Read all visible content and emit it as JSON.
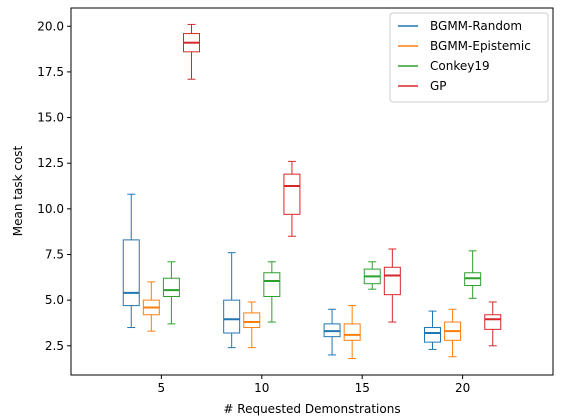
{
  "chart_data": {
    "type": "box",
    "title": "",
    "xlabel": "# Requested Demonstrations",
    "ylabel": "Mean task cost",
    "categories": [
      "5",
      "10",
      "15",
      "20"
    ],
    "x_ticks": [
      5,
      10,
      15,
      20
    ],
    "xlim": [
      0.5,
      24.5
    ],
    "ylim": [
      0.9,
      21.0
    ],
    "y_ticks": [
      "2.5",
      "5.0",
      "7.5",
      "10.0",
      "12.5",
      "15.0",
      "17.5",
      "20.0"
    ],
    "grid": false,
    "legend_position": "upper right",
    "series": [
      {
        "name": "BGMM-Random",
        "color": "#1f77b4",
        "boxes": [
          {
            "whislo": 3.5,
            "q1": 4.7,
            "med": 5.4,
            "q3": 8.3,
            "whishi": 10.8
          },
          {
            "whislo": 2.4,
            "q1": 3.2,
            "med": 3.95,
            "q3": 5.0,
            "whishi": 7.6
          },
          {
            "whislo": 2.0,
            "q1": 3.0,
            "med": 3.3,
            "q3": 3.7,
            "whishi": 4.5
          },
          {
            "whislo": 2.3,
            "q1": 2.7,
            "med": 3.2,
            "q3": 3.5,
            "whishi": 4.4
          }
        ]
      },
      {
        "name": "BGMM-Epistemic",
        "color": "#ff7f0e",
        "boxes": [
          {
            "whislo": 3.3,
            "q1": 4.2,
            "med": 4.6,
            "q3": 5.0,
            "whishi": 6.0
          },
          {
            "whislo": 2.4,
            "q1": 3.5,
            "med": 3.8,
            "q3": 4.3,
            "whishi": 4.9
          },
          {
            "whislo": 1.8,
            "q1": 2.8,
            "med": 3.1,
            "q3": 3.7,
            "whishi": 4.7
          },
          {
            "whislo": 1.9,
            "q1": 2.8,
            "med": 3.3,
            "q3": 3.8,
            "whishi": 4.5
          }
        ]
      },
      {
        "name": "Conkey19",
        "color": "#2ca02c",
        "boxes": [
          {
            "whislo": 3.7,
            "q1": 5.2,
            "med": 5.55,
            "q3": 6.2,
            "whishi": 7.1
          },
          {
            "whislo": 3.8,
            "q1": 5.2,
            "med": 6.05,
            "q3": 6.5,
            "whishi": 7.1
          },
          {
            "whislo": 5.6,
            "q1": 5.9,
            "med": 6.3,
            "q3": 6.7,
            "whishi": 7.1
          },
          {
            "whislo": 5.1,
            "q1": 5.8,
            "med": 6.2,
            "q3": 6.5,
            "whishi": 7.7
          }
        ]
      },
      {
        "name": "GP",
        "color": "#d62728",
        "boxes": [
          {
            "whislo": 17.1,
            "q1": 18.6,
            "med": 19.1,
            "q3": 19.6,
            "whishi": 20.1
          },
          {
            "whislo": 8.5,
            "q1": 9.7,
            "med": 11.25,
            "q3": 11.9,
            "whishi": 12.6
          },
          {
            "whislo": 3.8,
            "q1": 5.3,
            "med": 6.35,
            "q3": 6.8,
            "whishi": 7.8
          },
          {
            "whislo": 2.5,
            "q1": 3.4,
            "med": 3.95,
            "q3": 4.2,
            "whishi": 4.9
          }
        ]
      }
    ]
  }
}
